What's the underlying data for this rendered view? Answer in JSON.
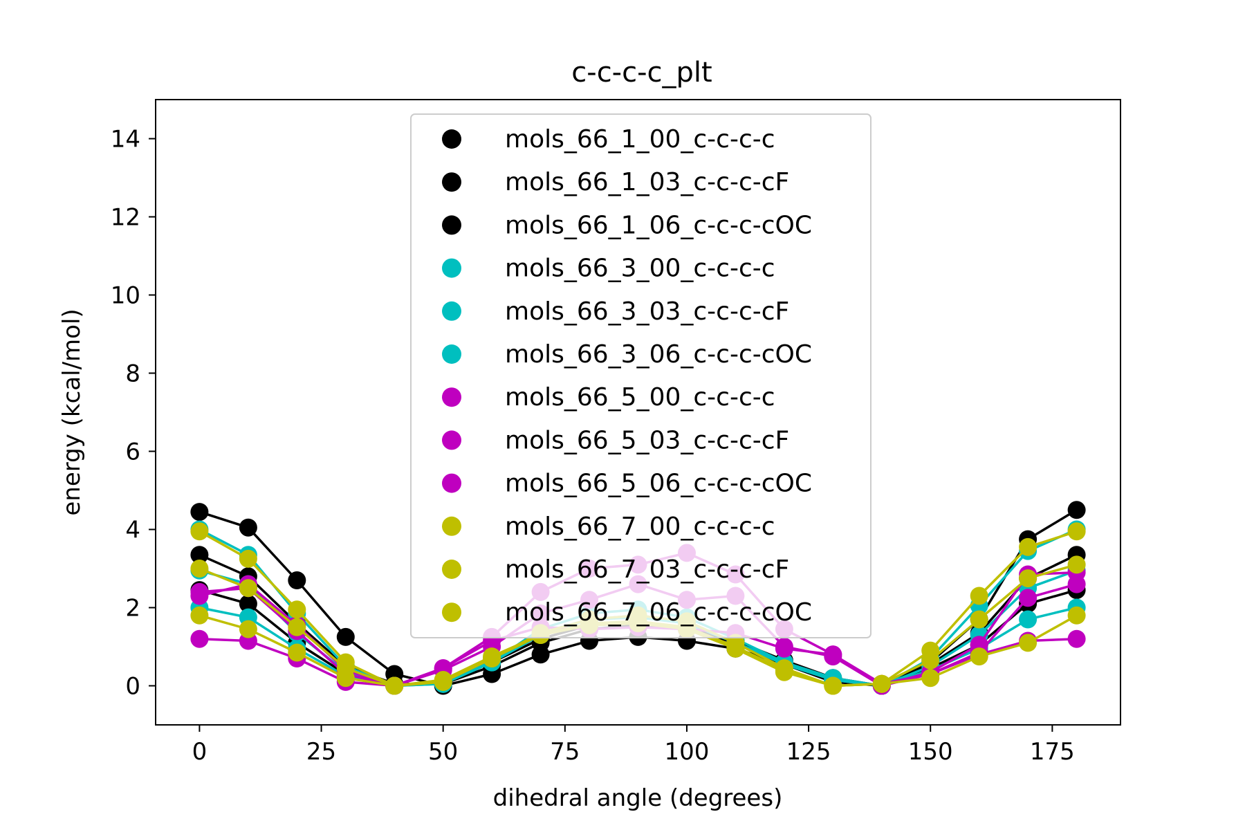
{
  "chart_data": {
    "type": "line",
    "title": "c-c-c-c_plt",
    "xlabel": "dihedral angle (degrees)",
    "ylabel": "energy (kcal/mol)",
    "xlim": [
      -9,
      189
    ],
    "ylim": [
      -1,
      15
    ],
    "xticks": [
      0,
      25,
      50,
      75,
      100,
      125,
      150,
      175
    ],
    "yticks": [
      0,
      2,
      4,
      6,
      8,
      10,
      12,
      14
    ],
    "grid": false,
    "legend_position": "upper center",
    "x": [
      0,
      10,
      20,
      30,
      40,
      50,
      60,
      70,
      80,
      90,
      100,
      110,
      120,
      130,
      140,
      150,
      160,
      170,
      180
    ],
    "series": [
      {
        "name": "mols_66_1_00_c-c-c-c",
        "color": "#000000",
        "values": [
          4.45,
          4.05,
          2.7,
          1.25,
          0.3,
          0.0,
          0.3,
          0.8,
          1.15,
          1.25,
          1.15,
          0.95,
          0.55,
          0.1,
          0.0,
          0.6,
          1.7,
          3.75,
          4.5
        ]
      },
      {
        "name": "mols_66_1_03_c-c-c-cF",
        "color": "#000000",
        "values": [
          3.35,
          2.8,
          1.6,
          0.5,
          0.05,
          0.05,
          0.5,
          1.1,
          1.45,
          1.55,
          1.45,
          1.1,
          0.6,
          0.15,
          0.0,
          0.55,
          1.35,
          2.75,
          3.35
        ]
      },
      {
        "name": "mols_66_1_06_c-c-c-cOC",
        "color": "#000000",
        "values": [
          2.45,
          2.1,
          1.1,
          0.3,
          0.0,
          0.1,
          0.6,
          1.2,
          1.55,
          1.6,
          1.5,
          1.15,
          0.65,
          0.2,
          0.0,
          0.45,
          1.05,
          2.1,
          2.45
        ]
      },
      {
        "name": "mols_66_3_00_c-c-c-c",
        "color": "#00bfbf",
        "values": [
          4.0,
          3.35,
          1.85,
          0.5,
          0.0,
          0.05,
          0.6,
          1.45,
          1.85,
          1.95,
          1.75,
          1.2,
          0.6,
          0.15,
          0.0,
          0.7,
          2.05,
          3.45,
          4.0
        ]
      },
      {
        "name": "mols_66_3_03_c-c-c-cF",
        "color": "#00bfbf",
        "values": [
          2.95,
          2.6,
          1.35,
          0.35,
          0.0,
          0.05,
          0.6,
          1.3,
          1.7,
          1.8,
          1.65,
          1.1,
          0.55,
          0.15,
          0.0,
          0.5,
          1.3,
          2.5,
          2.95
        ]
      },
      {
        "name": "mols_66_3_06_c-c-c-cOC",
        "color": "#00bfbf",
        "values": [
          2.0,
          1.75,
          0.95,
          0.25,
          0.0,
          0.1,
          0.65,
          1.35,
          1.7,
          1.75,
          1.6,
          1.1,
          0.6,
          0.2,
          0.0,
          0.4,
          0.95,
          1.7,
          2.0
        ]
      },
      {
        "name": "mols_66_5_00_c-c-c-c",
        "color": "#bf00bf",
        "values": [
          2.3,
          2.6,
          1.55,
          0.4,
          0.0,
          0.45,
          1.25,
          2.4,
          3.0,
          3.1,
          3.4,
          2.85,
          1.45,
          0.8,
          0.0,
          0.35,
          1.05,
          2.85,
          2.9
        ]
      },
      {
        "name": "mols_66_5_03_c-c-c-cF",
        "color": "#bf00bf",
        "values": [
          2.4,
          2.5,
          1.4,
          0.3,
          0.0,
          0.4,
          1.0,
          1.85,
          2.2,
          2.6,
          2.2,
          2.3,
          1.0,
          0.75,
          0.0,
          0.3,
          0.85,
          2.25,
          2.6
        ]
      },
      {
        "name": "mols_66_5_06_c-c-c-cOC",
        "color": "#bf00bf",
        "values": [
          1.2,
          1.15,
          0.7,
          0.1,
          0.0,
          0.45,
          1.15,
          1.5,
          1.45,
          1.5,
          1.45,
          1.35,
          0.95,
          0.8,
          0.05,
          0.3,
          0.8,
          1.15,
          1.2
        ]
      },
      {
        "name": "mols_66_7_00_c-c-c-c",
        "color": "#bfbf00",
        "values": [
          3.95,
          3.25,
          1.95,
          0.6,
          0.0,
          0.1,
          0.7,
          1.35,
          1.7,
          1.8,
          1.65,
          1.1,
          0.45,
          0.0,
          0.05,
          0.9,
          2.3,
          3.55,
          3.95
        ]
      },
      {
        "name": "mols_66_7_03_c-c-c-cF",
        "color": "#bfbf00",
        "values": [
          3.0,
          2.5,
          1.5,
          0.45,
          0.0,
          0.1,
          0.7,
          1.3,
          1.6,
          1.65,
          1.5,
          1.0,
          0.4,
          0.0,
          0.05,
          0.65,
          1.7,
          2.75,
          3.1
        ]
      },
      {
        "name": "mols_66_7_06_c-c-c-cOC",
        "color": "#bfbf00",
        "values": [
          1.8,
          1.45,
          0.85,
          0.2,
          0.0,
          0.15,
          0.75,
          1.3,
          1.55,
          1.6,
          1.45,
          0.95,
          0.35,
          0.0,
          0.05,
          0.2,
          0.75,
          1.1,
          1.8
        ]
      }
    ]
  }
}
